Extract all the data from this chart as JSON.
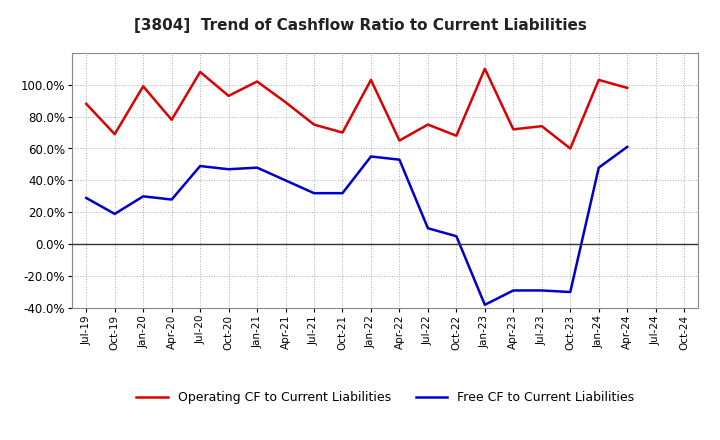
{
  "title": "[3804]  Trend of Cashflow Ratio to Current Liabilities",
  "x_labels": [
    "Jul-19",
    "Oct-19",
    "Jan-20",
    "Apr-20",
    "Jul-20",
    "Oct-20",
    "Jan-21",
    "Apr-21",
    "Jul-21",
    "Oct-21",
    "Jan-22",
    "Apr-22",
    "Jul-22",
    "Oct-22",
    "Jan-23",
    "Apr-23",
    "Jul-23",
    "Oct-23",
    "Jan-24",
    "Apr-24",
    "Jul-24",
    "Oct-24"
  ],
  "operating_cf": [
    88,
    69,
    99,
    78,
    108,
    93,
    102,
    89,
    75,
    70,
    103,
    65,
    75,
    68,
    110,
    72,
    74,
    60,
    103,
    98,
    null,
    null
  ],
  "free_cf": [
    29,
    19,
    30,
    28,
    49,
    47,
    48,
    40,
    32,
    32,
    55,
    53,
    10,
    5,
    -38,
    -29,
    -29,
    -30,
    48,
    61,
    null,
    null
  ],
  "operating_color": "#dd0000",
  "free_color": "#0000cc",
  "ylim": [
    -40,
    120
  ],
  "yticks": [
    -40,
    -20,
    0,
    20,
    40,
    60,
    80,
    100
  ],
  "legend_labels": [
    "Operating CF to Current Liabilities",
    "Free CF to Current Liabilities"
  ],
  "background_color": "#ffffff",
  "grid_color": "#999999"
}
